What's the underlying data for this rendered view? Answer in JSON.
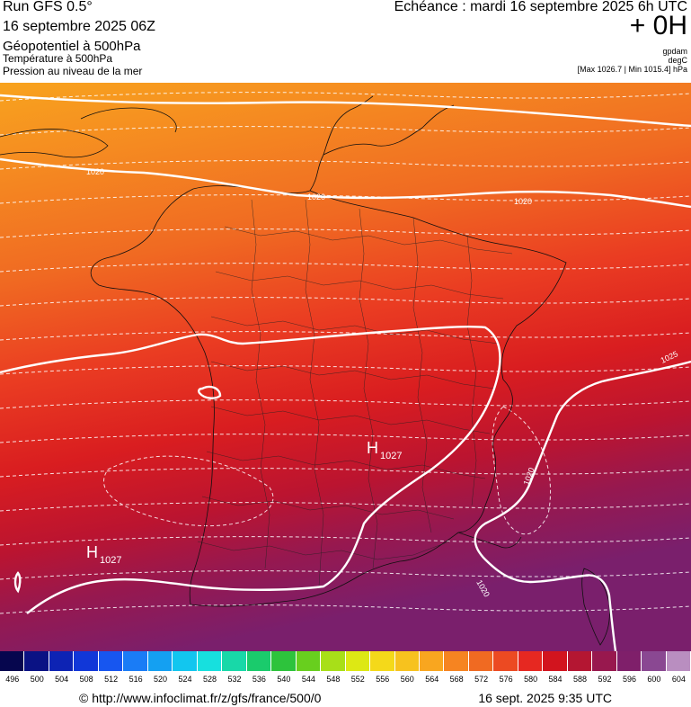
{
  "header": {
    "run_title": "Run GFS 0.5°",
    "run_date": "16 septembre 2025 06Z",
    "layer_geopotential": "Géopotentiel à 500hPa",
    "layer_temperature": "Température à 500hPa",
    "layer_pressure": "Pression au niveau de la mer",
    "echeance": "Echéance : mardi 16 septembre 2025 6h UTC",
    "offset": "+ 0H",
    "unit_geopotential": "gpdam",
    "unit_temperature": "degC",
    "pressure_range": "[Max 1026.7 | Min 1015.4] hPa"
  },
  "map": {
    "isobar_labels": [
      "1020",
      "1020",
      "1020",
      "1025",
      "1020",
      "1020"
    ],
    "highs": [
      {
        "letter": "H",
        "value": "1027"
      },
      {
        "letter": "H",
        "value": "1027"
      }
    ]
  },
  "colorbar": {
    "values": [
      496,
      500,
      504,
      508,
      512,
      516,
      520,
      524,
      528,
      532,
      536,
      540,
      544,
      548,
      552,
      556,
      560,
      564,
      568,
      572,
      576,
      580,
      584,
      588,
      592,
      596,
      600,
      604
    ],
    "colors": [
      "#06064e",
      "#0a1284",
      "#0d23b4",
      "#1137d8",
      "#1756f0",
      "#1a7cf6",
      "#14a0f2",
      "#12c6ef",
      "#17e0de",
      "#18d8a8",
      "#1acb6c",
      "#2dc33c",
      "#68cf1e",
      "#a8df18",
      "#dde814",
      "#f4d91a",
      "#f7c21e",
      "#f9a61f",
      "#f68421",
      "#f06a22",
      "#ec4a22",
      "#e62821",
      "#d2141e",
      "#b41632",
      "#98184e",
      "#7f1f6a",
      "#8a4892",
      "#b98ec0"
    ]
  },
  "footer": {
    "credit": "© http://www.infoclimat.fr/z/gfs/france/500/0",
    "timestamp": "16 sept. 2025  9:35 UTC"
  }
}
